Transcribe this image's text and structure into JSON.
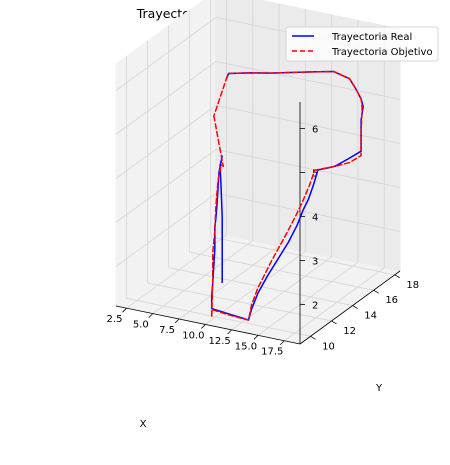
{
  "chart_data": {
    "type": "line3d",
    "title": "Trayectoria Real vs Objetivo",
    "xlabel": "X",
    "ylabel": "Y",
    "zlabel": "",
    "xlim": [
      1.5,
      19
    ],
    "ylim": [
      9,
      18.5
    ],
    "zlim": [
      1.1,
      6.6
    ],
    "xticks": [
      2.5,
      5.0,
      7.5,
      10.0,
      12.5,
      15.0,
      17.5
    ],
    "yticks": [
      10,
      12,
      14,
      16,
      18
    ],
    "zticks": [
      2,
      3,
      4,
      5,
      6
    ],
    "grid": true,
    "legend_position": "top-right",
    "series": [
      {
        "name": "Trayectoria Real",
        "color": "#0000ff",
        "style": "solid",
        "points": [
          [
            11.0,
            9.6,
            2.0
          ],
          [
            11.0,
            9.6,
            2.8
          ],
          [
            11.0,
            9.6,
            3.5
          ],
          [
            10.8,
            9.7,
            4.1
          ],
          [
            10.6,
            9.8,
            4.6
          ],
          [
            10.7,
            9.9,
            4.8
          ],
          [
            10.3,
            10.0,
            4.4
          ],
          [
            10.1,
            10.1,
            4.0
          ],
          [
            9.9,
            10.2,
            3.6
          ],
          [
            9.8,
            10.2,
            3.3
          ],
          [
            9.7,
            10.2,
            3.1
          ],
          [
            9.7,
            10.2,
            2.6
          ],
          [
            9.6,
            10.2,
            2.2
          ],
          [
            9.5,
            10.2,
            1.8
          ],
          [
            9.4,
            10.2,
            1.5
          ],
          [
            9.3,
            10.3,
            1.2
          ],
          [
            10.2,
            10.2,
            1.2
          ],
          [
            11.2,
            10.1,
            1.2
          ],
          [
            12.3,
            10.0,
            1.2
          ],
          [
            13.2,
            9.9,
            1.2
          ],
          [
            13.2,
            10.2,
            1.4
          ],
          [
            13.4,
            10.6,
            1.7
          ],
          [
            13.7,
            11.2,
            2.0
          ],
          [
            14.1,
            11.8,
            2.3
          ],
          [
            14.5,
            12.4,
            2.6
          ],
          [
            14.8,
            12.9,
            2.9
          ],
          [
            15.0,
            13.3,
            3.2
          ],
          [
            15.2,
            13.6,
            3.4
          ],
          [
            15.4,
            13.9,
            3.7
          ],
          [
            15.6,
            14.1,
            4.0
          ],
          [
            15.9,
            14.3,
            4.0
          ],
          [
            16.5,
            14.8,
            4.0
          ],
          [
            17.2,
            15.5,
            4.1
          ],
          [
            17.8,
            16.0,
            4.2
          ],
          [
            17.8,
            16.0,
            4.6
          ],
          [
            17.8,
            16.0,
            4.9
          ],
          [
            17.9,
            16.1,
            5.2
          ],
          [
            17.4,
            16.4,
            5.3
          ],
          [
            16.0,
            17.3,
            5.3
          ],
          [
            14.5,
            18.2,
            5.3
          ],
          [
            12.6,
            18.6,
            5.3
          ],
          [
            11.0,
            18.1,
            5.3
          ],
          [
            9.5,
            17.6,
            5.3
          ],
          [
            8.0,
            17.1,
            5.3
          ],
          [
            6.5,
            16.7,
            5.3
          ],
          [
            5.0,
            16.2,
            5.3
          ],
          [
            4.9,
            16.1,
            5.2
          ]
        ]
      },
      {
        "name": "Trayectoria Objetivo",
        "color": "#ff0000",
        "style": "dashed",
        "points": [
          [
            4.2,
            15.6,
            4.4
          ],
          [
            10.9,
            9.8,
            4.6
          ],
          [
            10.6,
            9.9,
            4.6
          ],
          [
            10.2,
            10.0,
            4.2
          ],
          [
            9.9,
            10.1,
            3.6
          ],
          [
            9.7,
            10.2,
            3.0
          ],
          [
            9.5,
            10.2,
            2.5
          ],
          [
            9.5,
            10.2,
            1.9
          ],
          [
            9.3,
            10.3,
            1.0
          ],
          [
            9.4,
            10.2,
            1.2
          ],
          [
            10.4,
            10.1,
            1.2
          ],
          [
            11.4,
            10.0,
            1.2
          ],
          [
            13.2,
            9.9,
            1.2
          ],
          [
            13.2,
            10.2,
            1.5
          ],
          [
            13.3,
            10.7,
            1.8
          ],
          [
            13.8,
            11.5,
            2.3
          ],
          [
            14.2,
            12.3,
            2.7
          ],
          [
            14.6,
            13.0,
            3.1
          ],
          [
            14.9,
            13.4,
            3.4
          ],
          [
            15.2,
            13.7,
            3.7
          ],
          [
            15.4,
            14.0,
            4.0
          ],
          [
            16.5,
            14.8,
            4.0
          ],
          [
            17.2,
            15.5,
            4.0
          ],
          [
            17.8,
            16.0,
            4.1
          ],
          [
            17.8,
            16.0,
            4.6
          ],
          [
            17.9,
            16.0,
            5.2
          ],
          [
            17.4,
            16.4,
            5.3
          ],
          [
            16.0,
            17.3,
            5.3
          ],
          [
            14.5,
            18.2,
            5.3
          ],
          [
            12.6,
            18.6,
            5.3
          ],
          [
            11.0,
            18.1,
            5.3
          ],
          [
            9.5,
            17.6,
            5.3
          ],
          [
            8.0,
            17.1,
            5.3
          ],
          [
            6.5,
            16.7,
            5.3
          ],
          [
            5.0,
            16.2,
            5.3
          ],
          [
            4.9,
            16.1,
            5.2
          ],
          [
            4.2,
            15.6,
            4.4
          ]
        ]
      }
    ]
  }
}
